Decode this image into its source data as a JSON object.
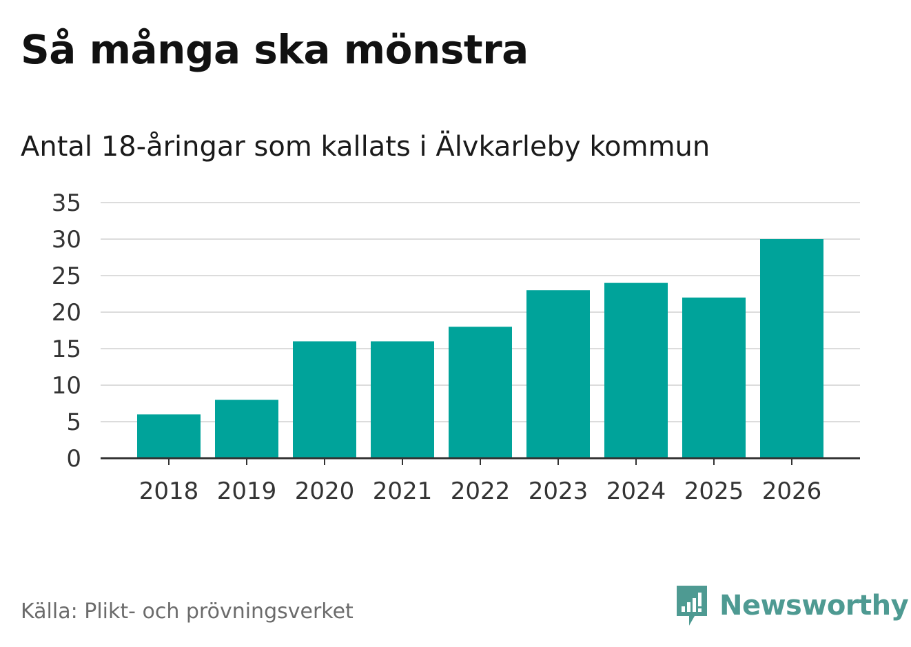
{
  "header": {
    "title": "Så många ska mönstra",
    "subtitle": "Antal 18-åringar som kallats i Älvkarleby kommun"
  },
  "footer": {
    "source": "Källa: Plikt- och prövningsverket",
    "brand": "Newsworthy"
  },
  "colors": {
    "bar": "#00a39a",
    "grid": "#dcdcdc",
    "axis": "#333333",
    "brand": "#4e9a92"
  },
  "icons": {
    "brand_logo": "newsworthy-logo-icon"
  },
  "chart_data": {
    "type": "bar",
    "title": "Så många ska mönstra",
    "subtitle": "Antal 18-åringar som kallats i Älvkarleby kommun",
    "categories": [
      "2018",
      "2019",
      "2020",
      "2021",
      "2022",
      "2023",
      "2024",
      "2025",
      "2026"
    ],
    "values": [
      6,
      8,
      16,
      16,
      18,
      23,
      24,
      22,
      30
    ],
    "yticks": [
      0,
      5,
      10,
      15,
      20,
      25,
      30,
      35
    ],
    "ylim": [
      0,
      35
    ],
    "xlabel": "",
    "ylabel": "",
    "grid": true,
    "legend": "none"
  }
}
